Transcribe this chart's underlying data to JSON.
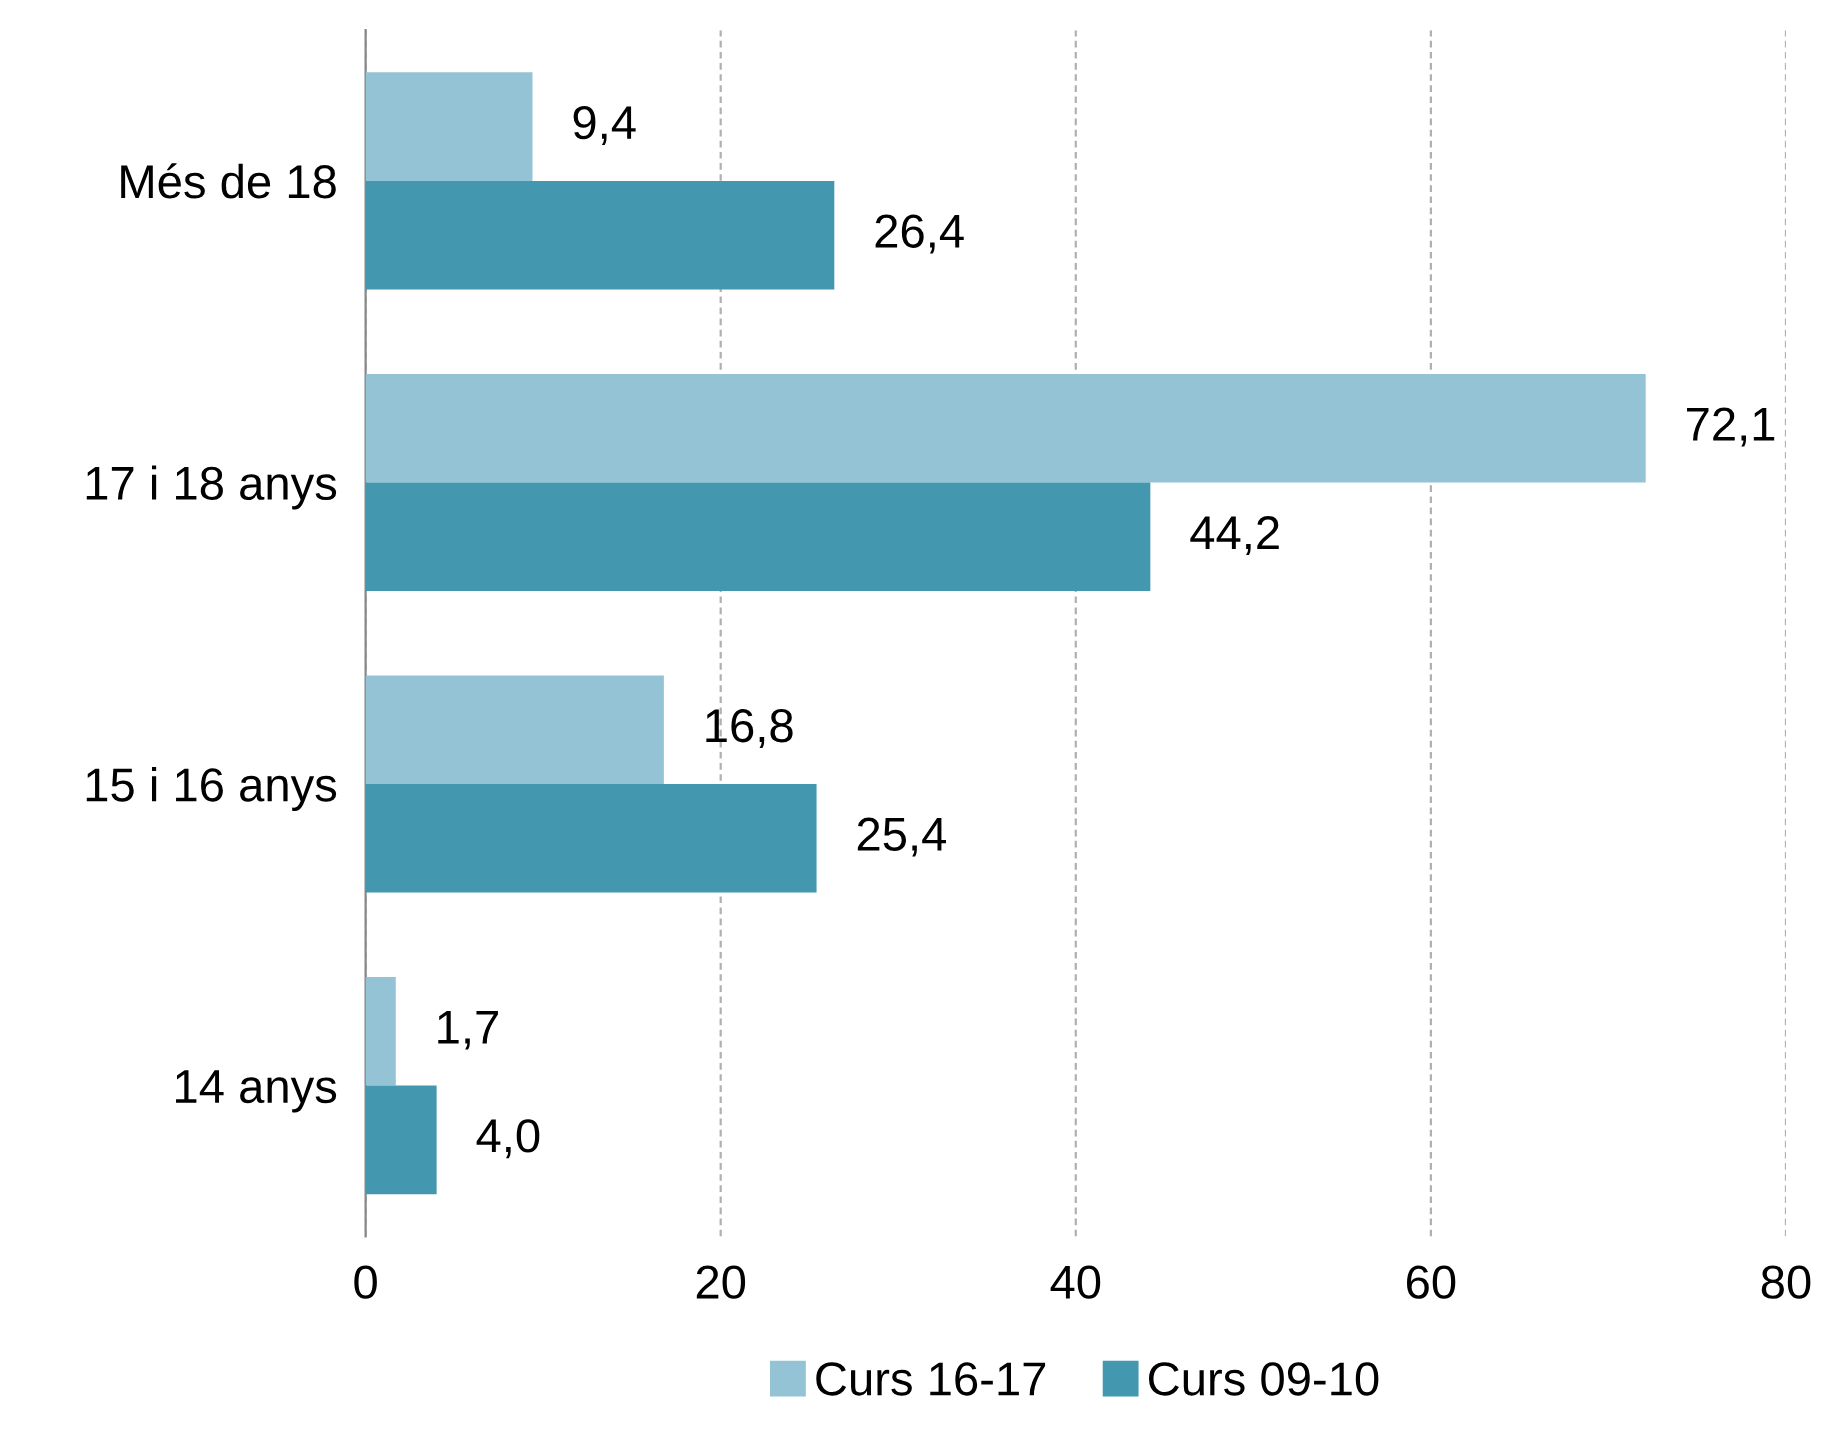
{
  "chart_data": {
    "type": "bar",
    "orientation": "horizontal",
    "categories": [
      "Més de 18",
      "17 i 18 anys",
      "15 i 16 anys",
      "14 anys"
    ],
    "series": [
      {
        "name": "Curs 16-17",
        "color": "#93c3d4",
        "values": [
          9.4,
          72.1,
          16.8,
          1.7
        ],
        "value_labels": [
          "9,4",
          "72,1",
          "16,8",
          "1,7"
        ]
      },
      {
        "name": "Curs 09-10",
        "color": "#4398b0",
        "values": [
          26.4,
          44.2,
          25.4,
          4.0
        ],
        "value_labels": [
          "26,4",
          "44,2",
          "25,4",
          "4,0"
        ]
      }
    ],
    "xlim": [
      0,
      80
    ],
    "xticks": [
      0,
      20,
      40,
      60,
      80
    ],
    "grid": "x",
    "legend": "bottom"
  }
}
